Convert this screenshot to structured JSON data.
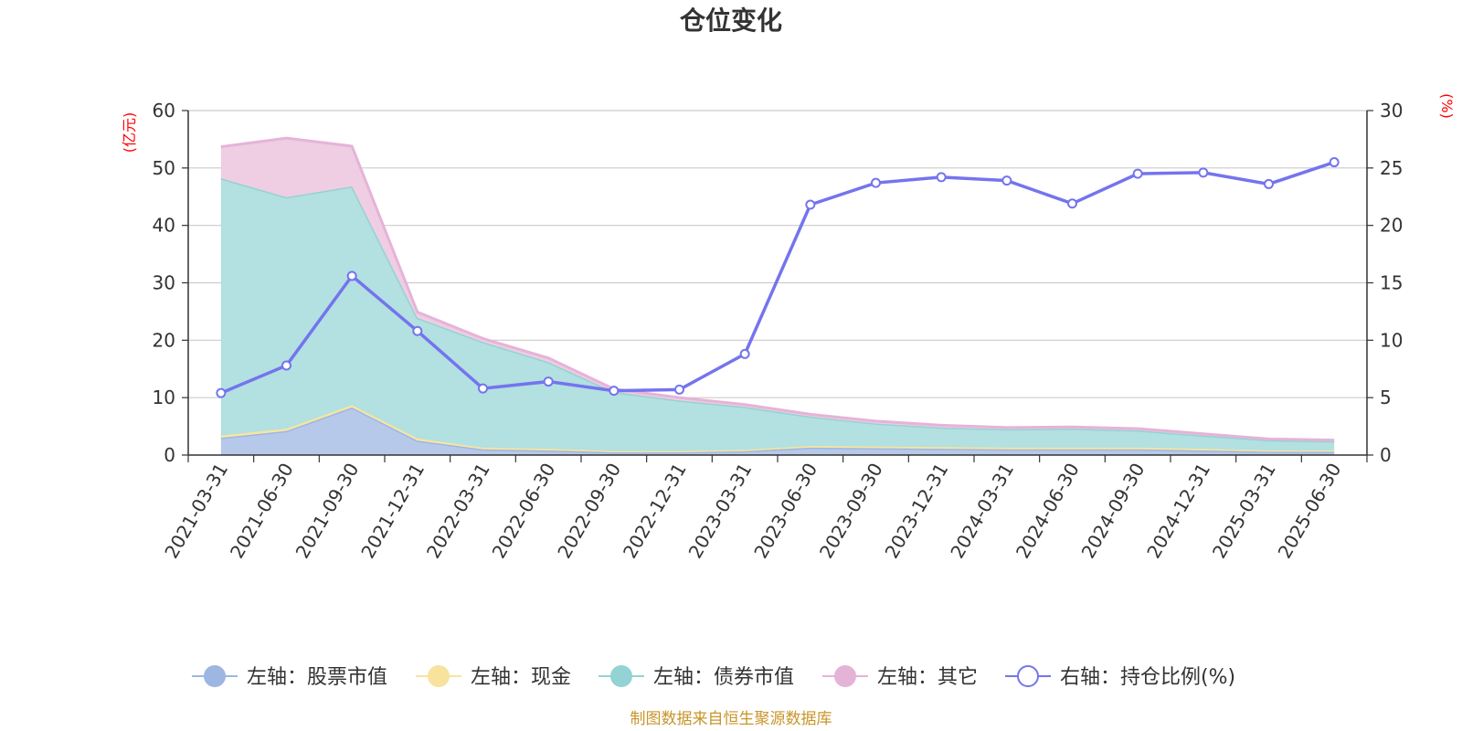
{
  "chart_data": {
    "type": "area",
    "title": "仓位变化",
    "source": "制图数据来自恒生聚源数据库",
    "left_unit": "(亿元)",
    "right_unit": "(%)",
    "ylim_left": [
      0,
      60
    ],
    "ylim_right": [
      0,
      30
    ],
    "yticks_left": [
      0,
      10,
      20,
      30,
      40,
      50,
      60
    ],
    "yticks_right": [
      0,
      5,
      10,
      15,
      20,
      25,
      30
    ],
    "grid": true,
    "legend_position": "bottom",
    "categories": [
      "2021-03-31",
      "2021-06-30",
      "2021-09-30",
      "2021-12-31",
      "2022-03-31",
      "2022-06-30",
      "2022-09-30",
      "2022-12-31",
      "2023-03-31",
      "2023-06-30",
      "2023-09-30",
      "2023-12-31",
      "2024-03-31",
      "2024-06-30",
      "2024-09-30",
      "2024-12-31",
      "2025-03-31",
      "2025-06-30"
    ],
    "stacked_series": [
      {
        "name": "左轴：股票市值",
        "color": "#b7c9ea",
        "line": "#9db6e2",
        "values": [
          3.0,
          4.2,
          8.3,
          2.5,
          1.0,
          0.8,
          0.5,
          0.5,
          0.7,
          1.3,
          1.2,
          1.1,
          1.0,
          1.0,
          1.0,
          0.8,
          0.6,
          0.6
        ]
      },
      {
        "name": "左轴：现金",
        "color": "#f9e8a8",
        "line": "#f7e39e",
        "values": [
          0.4,
          0.4,
          0.4,
          0.4,
          0.3,
          0.3,
          0.2,
          0.2,
          0.2,
          0.3,
          0.3,
          0.3,
          0.3,
          0.3,
          0.3,
          0.3,
          0.2,
          0.2
        ]
      },
      {
        "name": "左轴：债券市值",
        "color": "#b3e0e0",
        "line": "#93d3d3",
        "values": [
          44.8,
          40.3,
          38.1,
          21.0,
          18.4,
          15.1,
          10.3,
          8.8,
          7.5,
          5.1,
          4.0,
          3.4,
          3.2,
          3.3,
          3.0,
          2.3,
          1.8,
          1.6
        ]
      },
      {
        "name": "左轴：其它",
        "color": "#efcde3",
        "line": "#e6b3d8",
        "values": [
          5.5,
          10.3,
          7.0,
          1.0,
          0.6,
          0.7,
          0.5,
          0.5,
          0.4,
          0.4,
          0.4,
          0.4,
          0.3,
          0.3,
          0.3,
          0.3,
          0.2,
          0.2
        ]
      }
    ],
    "line_series": {
      "name": "右轴：持仓比例(%)",
      "color": "#7474ee",
      "values": [
        5.4,
        7.8,
        15.6,
        10.8,
        5.8,
        6.4,
        5.6,
        5.7,
        8.8,
        21.8,
        23.7,
        24.2,
        23.9,
        21.9,
        24.5,
        24.6,
        23.6,
        25.5
      ]
    }
  }
}
